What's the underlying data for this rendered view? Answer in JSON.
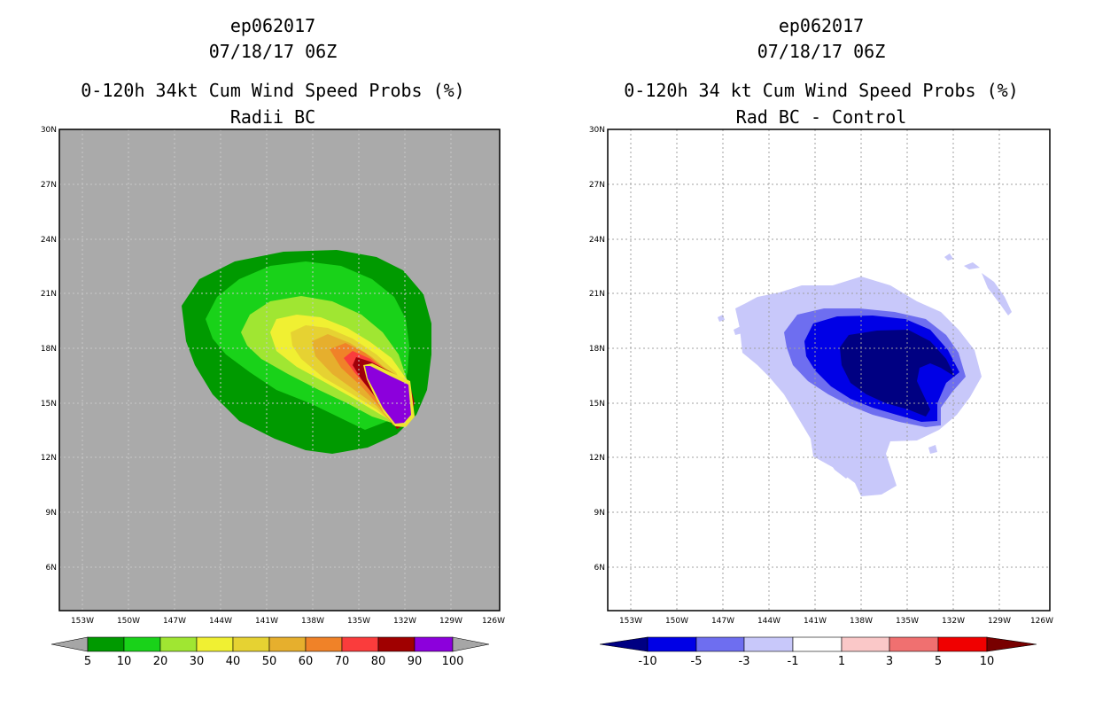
{
  "left_panel": {
    "storm_id": "ep062017",
    "datetime": "07/18/17 06Z",
    "product_title": "0-120h 34kt Cum Wind Speed Probs (%)",
    "subtitle": "Radii BC",
    "background_color": "#aaaaaa",
    "lat_labels": [
      "30N",
      "27N",
      "24N",
      "21N",
      "18N",
      "15N",
      "12N",
      "9N",
      "6N"
    ],
    "lon_labels": [
      "153W",
      "150W",
      "147W",
      "144W",
      "141W",
      "138W",
      "135W",
      "132W",
      "129W",
      "126W"
    ],
    "colorbar": {
      "labels": [
        "5",
        "10",
        "20",
        "30",
        "40",
        "50",
        "60",
        "70",
        "80",
        "90",
        "100"
      ],
      "colors": [
        "#009a00",
        "#19d219",
        "#a0e632",
        "#f0f032",
        "#e6d232",
        "#e6af2d",
        "#f08228",
        "#fa3c3c",
        "#a00000",
        "#8c00dc"
      ],
      "under_color": "#a6a6a6",
      "over_color": "#a6a6a6"
    }
  },
  "right_panel": {
    "storm_id": "ep062017",
    "datetime": "07/18/17 06Z",
    "product_title": "0-120h 34 kt Cum Wind Speed Probs (%)",
    "subtitle": "Rad BC - Control",
    "background_color": "#ffffff",
    "lat_labels": [
      "30N",
      "27N",
      "24N",
      "21N",
      "18N",
      "15N",
      "12N",
      "9N",
      "6N"
    ],
    "lon_labels": [
      "153W",
      "150W",
      "147W",
      "144W",
      "141W",
      "138W",
      "135W",
      "132W",
      "129W",
      "126W"
    ],
    "colorbar": {
      "labels": [
        "-10",
        "-5",
        "-3",
        "-1",
        "1",
        "3",
        "5",
        "10"
      ],
      "colors": [
        "#0000e6",
        "#6e6ef0",
        "#c8c8fa",
        "#ffffff",
        "#fac8c8",
        "#f07070",
        "#f00000"
      ],
      "under_color": "#000082",
      "over_color": "#780000"
    }
  }
}
